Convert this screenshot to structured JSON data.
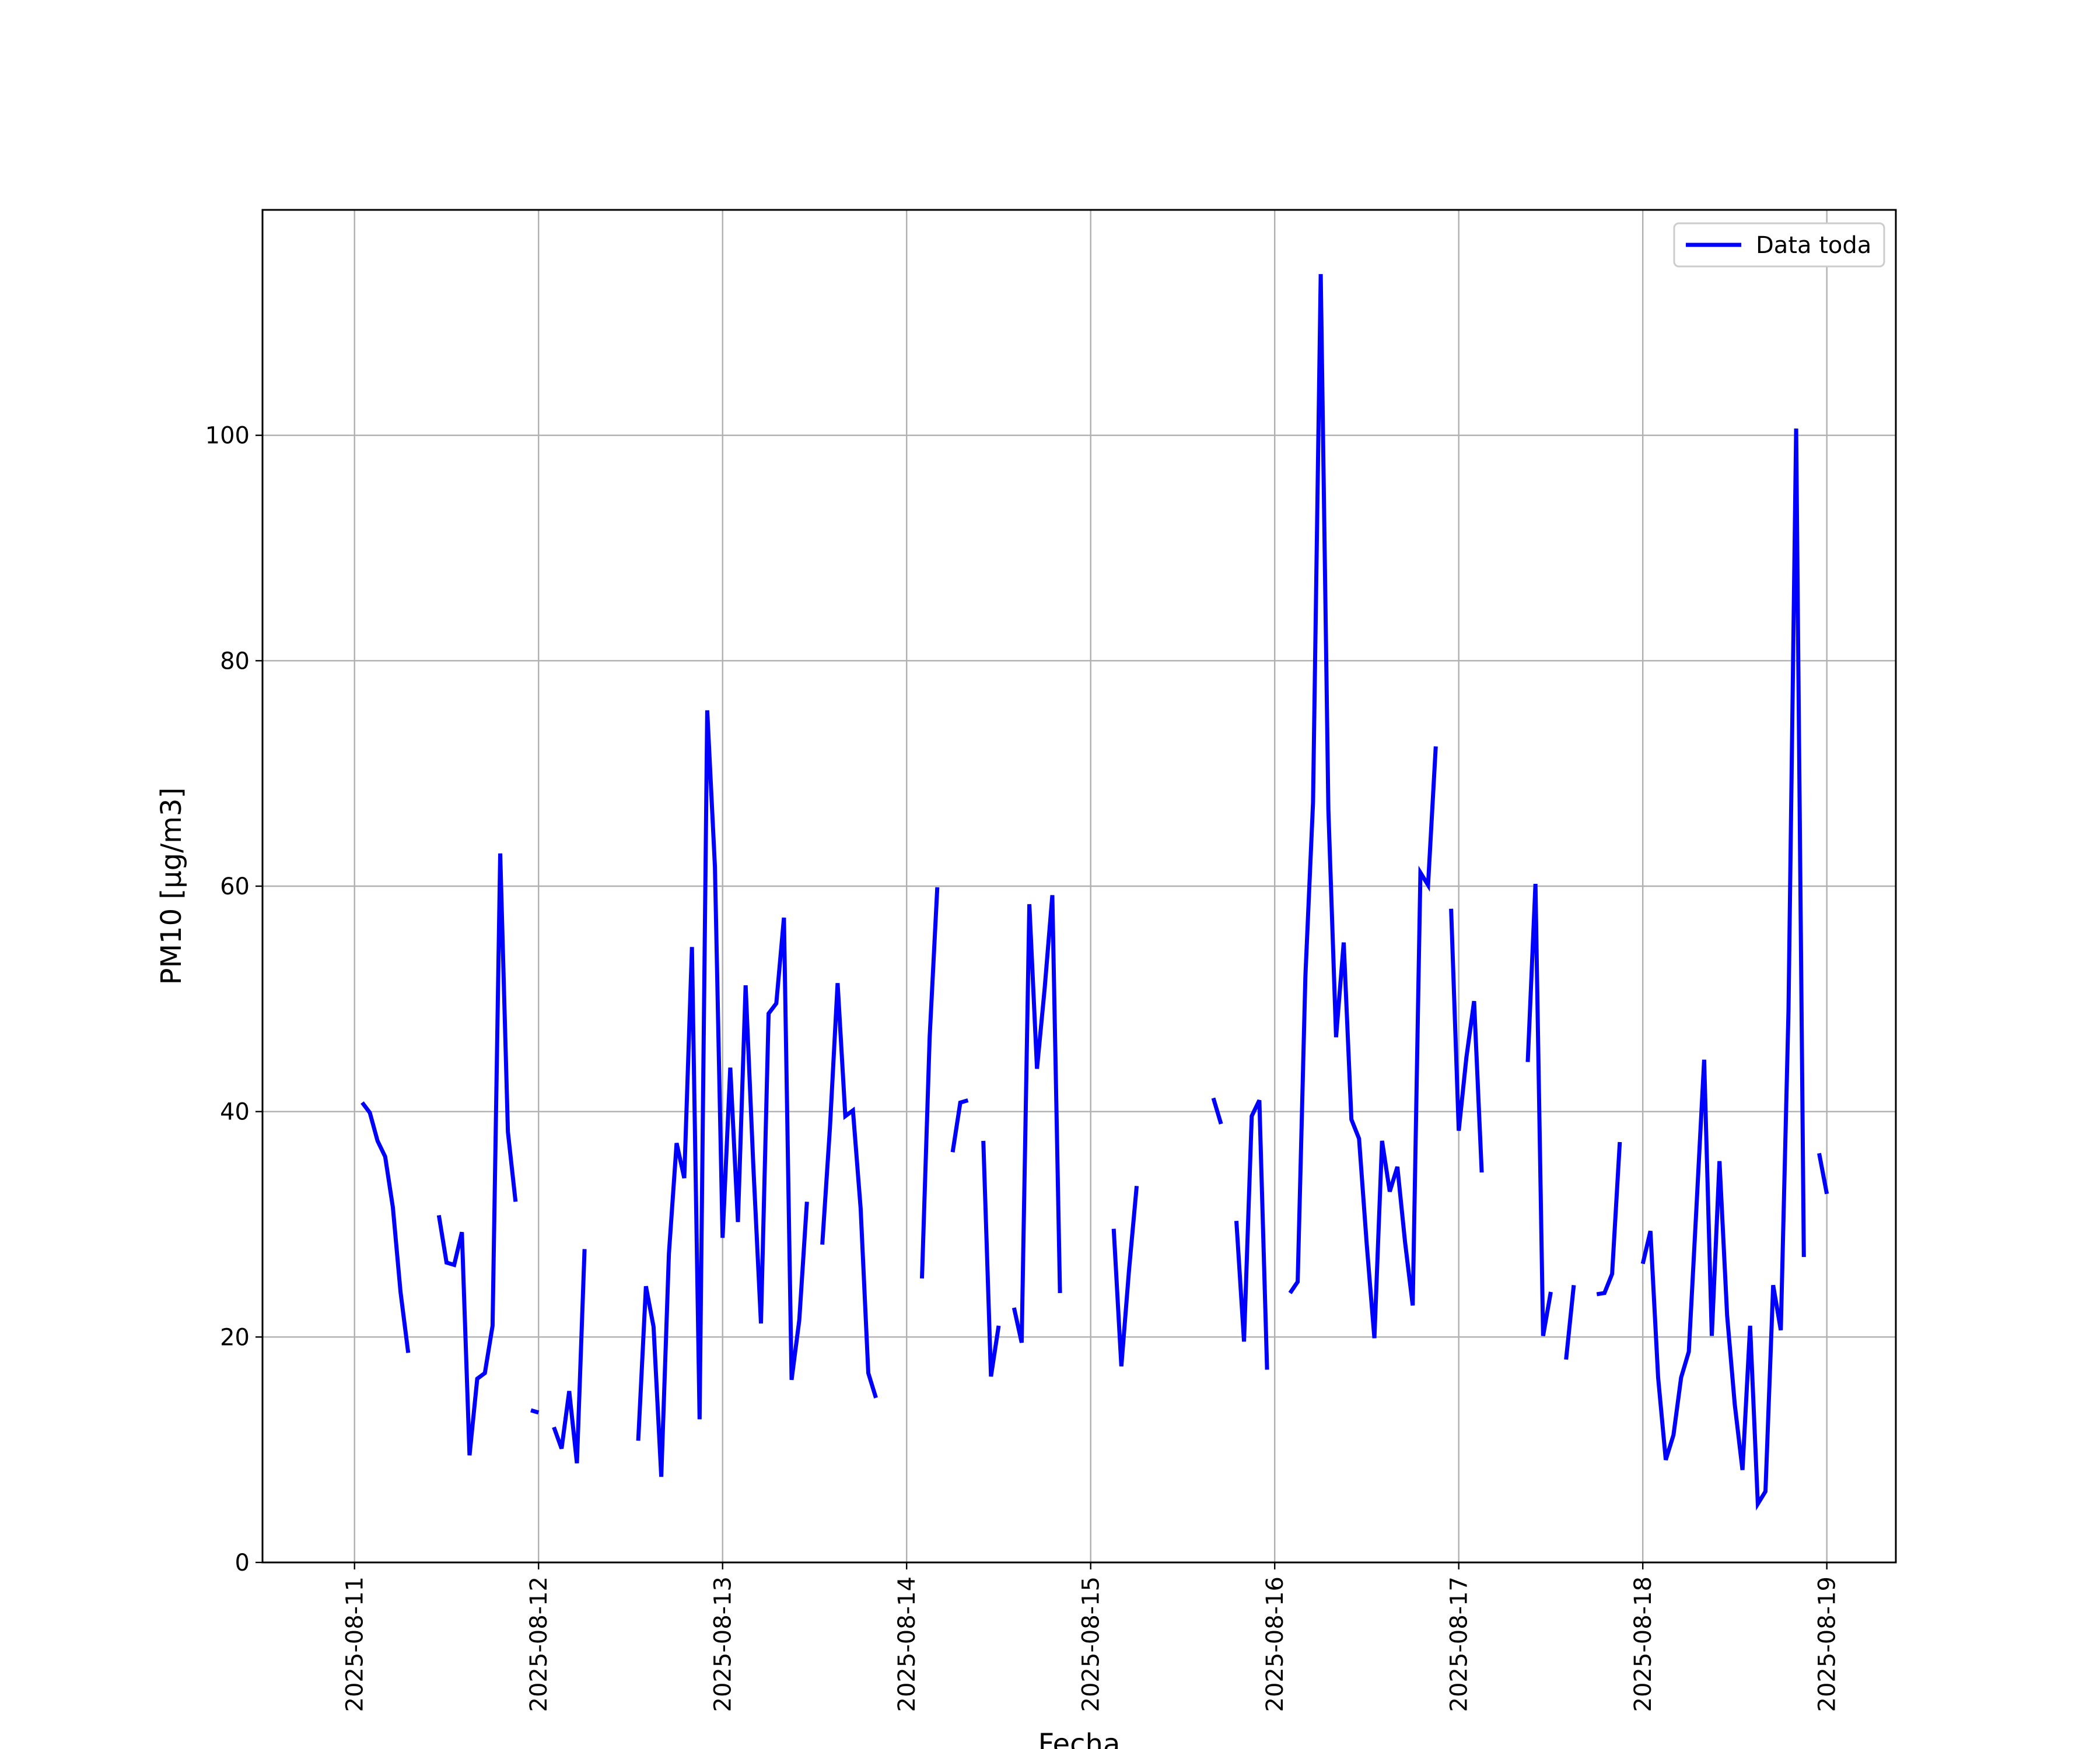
{
  "chart_data": {
    "type": "line",
    "title": "",
    "xlabel": "Fecha",
    "ylabel": "PM10 [μg/m3]",
    "ylim": [
      0,
      120
    ],
    "xlim": [
      "2025-08-10 12:00",
      "2025-08-19 09:00"
    ],
    "grid": true,
    "legend": {
      "placement": "top-right",
      "entries": [
        "Data toda"
      ]
    },
    "x_ticks": [
      "2025-08-11",
      "2025-08-12",
      "2025-08-13",
      "2025-08-14",
      "2025-08-15",
      "2025-08-16",
      "2025-08-17",
      "2025-08-18",
      "2025-08-19"
    ],
    "y_ticks": [
      0,
      20,
      40,
      60,
      80,
      100
    ],
    "series": [
      {
        "name": "Data toda",
        "color": "#0000ff",
        "segments": [
          [
            [
              "2025-08-11 01:00",
              40.8
            ],
            [
              "2025-08-11 02:00",
              39.9
            ],
            [
              "2025-08-11 03:00",
              37.4
            ],
            [
              "2025-08-11 04:00",
              36.0
            ],
            [
              "2025-08-11 05:00",
              31.5
            ],
            [
              "2025-08-11 06:00",
              24.0
            ],
            [
              "2025-08-11 07:00",
              18.6
            ]
          ],
          [
            [
              "2025-08-11 11:00",
              30.8
            ],
            [
              "2025-08-11 12:00",
              26.6
            ],
            [
              "2025-08-11 13:00",
              26.4
            ],
            [
              "2025-08-11 14:00",
              29.3
            ],
            [
              "2025-08-11 15:00",
              9.5
            ],
            [
              "2025-08-11 16:00",
              16.3
            ],
            [
              "2025-08-11 17:00",
              16.8
            ],
            [
              "2025-08-11 18:00",
              21.0
            ],
            [
              "2025-08-11 19:00",
              62.9
            ],
            [
              "2025-08-11 20:00",
              38.2
            ],
            [
              "2025-08-11 21:00",
              32.0
            ]
          ],
          [
            [
              "2025-08-11 23:00",
              13.5
            ],
            [
              "2025-08-12 00:00",
              13.3
            ]
          ],
          [
            [
              "2025-08-12 02:00",
              12.0
            ],
            [
              "2025-08-12 03:00",
              10.1
            ],
            [
              "2025-08-12 04:00",
              15.2
            ],
            [
              "2025-08-12 05:00",
              8.8
            ],
            [
              "2025-08-12 06:00",
              27.8
            ]
          ],
          [
            [
              "2025-08-12 13:00",
              10.8
            ],
            [
              "2025-08-12 14:00",
              24.5
            ],
            [
              "2025-08-12 15:00",
              20.9
            ],
            [
              "2025-08-12 16:00",
              7.6
            ],
            [
              "2025-08-12 17:00",
              27.4
            ],
            [
              "2025-08-12 18:00",
              37.2
            ],
            [
              "2025-08-12 19:00",
              34.1
            ],
            [
              "2025-08-12 20:00",
              54.6
            ],
            [
              "2025-08-12 21:00",
              12.7
            ],
            [
              "2025-08-12 22:00",
              75.6
            ],
            [
              "2025-08-12 23:00",
              61.7
            ],
            [
              "2025-08-13 00:00",
              28.8
            ],
            [
              "2025-08-13 01:00",
              43.9
            ],
            [
              "2025-08-13 02:00",
              30.2
            ],
            [
              "2025-08-13 03:00",
              51.2
            ],
            [
              "2025-08-13 04:00",
              35.3
            ],
            [
              "2025-08-13 05:00",
              21.2
            ],
            [
              "2025-08-13 06:00",
              48.7
            ],
            [
              "2025-08-13 07:00",
              49.6
            ],
            [
              "2025-08-13 08:00",
              57.2
            ],
            [
              "2025-08-13 09:00",
              16.2
            ],
            [
              "2025-08-13 10:00",
              21.5
            ],
            [
              "2025-08-13 11:00",
              32.0
            ]
          ],
          [
            [
              "2025-08-13 13:00",
              28.2
            ],
            [
              "2025-08-13 14:00",
              38.6
            ],
            [
              "2025-08-13 15:00",
              51.4
            ],
            [
              "2025-08-13 16:00",
              39.6
            ],
            [
              "2025-08-13 17:00",
              40.1
            ],
            [
              "2025-08-13 18:00",
              31.4
            ],
            [
              "2025-08-13 19:00",
              16.8
            ],
            [
              "2025-08-13 20:00",
              14.6
            ]
          ],
          [
            [
              "2025-08-14 02:00",
              25.2
            ],
            [
              "2025-08-14 03:00",
              46.6
            ],
            [
              "2025-08-14 04:00",
              59.9
            ]
          ],
          [
            [
              "2025-08-14 06:00",
              36.4
            ],
            [
              "2025-08-14 07:00",
              40.8
            ],
            [
              "2025-08-14 08:00",
              41.0
            ]
          ],
          [
            [
              "2025-08-14 10:00",
              37.4
            ],
            [
              "2025-08-14 11:00",
              16.5
            ],
            [
              "2025-08-14 12:00",
              21.0
            ]
          ],
          [
            [
              "2025-08-14 14:00",
              22.6
            ],
            [
              "2025-08-14 15:00",
              19.5
            ],
            [
              "2025-08-14 16:00",
              58.4
            ],
            [
              "2025-08-14 17:00",
              43.8
            ],
            [
              "2025-08-14 18:00",
              50.9
            ],
            [
              "2025-08-14 19:00",
              59.2
            ],
            [
              "2025-08-14 20:00",
              23.9
            ]
          ],
          [
            [
              "2025-08-15 03:00",
              29.6
            ],
            [
              "2025-08-15 04:00",
              17.4
            ],
            [
              "2025-08-15 05:00",
              25.9
            ],
            [
              "2025-08-15 06:00",
              33.4
            ]
          ],
          [
            [
              "2025-08-15 16:00",
              41.2
            ],
            [
              "2025-08-15 17:00",
              38.9
            ]
          ],
          [
            [
              "2025-08-15 19:00",
              30.3
            ],
            [
              "2025-08-15 20:00",
              19.6
            ],
            [
              "2025-08-15 21:00",
              39.6
            ],
            [
              "2025-08-15 22:00",
              41.0
            ],
            [
              "2025-08-15 23:00",
              17.1
            ]
          ],
          [
            [
              "2025-08-16 02:00",
              23.9
            ],
            [
              "2025-08-16 03:00",
              24.9
            ],
            [
              "2025-08-16 04:00",
              52.0
            ],
            [
              "2025-08-16 05:00",
              67.4
            ],
            [
              "2025-08-16 06:00",
              114.3
            ],
            [
              "2025-08-16 07:00",
              66.8
            ],
            [
              "2025-08-16 08:00",
              46.6
            ],
            [
              "2025-08-16 09:00",
              55.0
            ],
            [
              "2025-08-16 10:00",
              39.3
            ],
            [
              "2025-08-16 11:00",
              37.6
            ],
            [
              "2025-08-16 12:00",
              28.2
            ],
            [
              "2025-08-16 13:00",
              19.9
            ],
            [
              "2025-08-16 14:00",
              37.4
            ],
            [
              "2025-08-16 15:00",
              32.9
            ],
            [
              "2025-08-16 16:00",
              35.1
            ],
            [
              "2025-08-16 17:00",
              28.4
            ],
            [
              "2025-08-16 18:00",
              22.8
            ],
            [
              "2025-08-16 19:00",
              61.2
            ],
            [
              "2025-08-16 20:00",
              60.1
            ],
            [
              "2025-08-16 21:00",
              72.4
            ]
          ],
          [
            [
              "2025-08-16 23:00",
              58.0
            ],
            [
              "2025-08-17 00:00",
              38.3
            ],
            [
              "2025-08-17 01:00",
              44.8
            ],
            [
              "2025-08-17 02:00",
              49.8
            ],
            [
              "2025-08-17 03:00",
              34.6
            ]
          ],
          [
            [
              "2025-08-17 09:00",
              44.4
            ],
            [
              "2025-08-17 10:00",
              60.2
            ],
            [
              "2025-08-17 11:00",
              20.1
            ],
            [
              "2025-08-17 12:00",
              24.0
            ]
          ],
          [
            [
              "2025-08-17 14:00",
              18.0
            ],
            [
              "2025-08-17 15:00",
              24.6
            ]
          ],
          [
            [
              "2025-08-17 18:00",
              23.8
            ],
            [
              "2025-08-17 19:00",
              23.9
            ],
            [
              "2025-08-17 20:00",
              25.6
            ],
            [
              "2025-08-17 21:00",
              37.3
            ]
          ],
          [
            [
              "2025-08-18 00:00",
              26.5
            ],
            [
              "2025-08-18 01:00",
              29.4
            ],
            [
              "2025-08-18 02:00",
              16.4
            ],
            [
              "2025-08-18 03:00",
              9.1
            ],
            [
              "2025-08-18 04:00",
              11.3
            ],
            [
              "2025-08-18 05:00",
              16.4
            ],
            [
              "2025-08-18 06:00",
              18.7
            ],
            [
              "2025-08-18 07:00",
              31.5
            ],
            [
              "2025-08-18 08:00",
              44.6
            ],
            [
              "2025-08-18 09:00",
              20.1
            ],
            [
              "2025-08-18 10:00",
              35.6
            ],
            [
              "2025-08-18 11:00",
              21.9
            ],
            [
              "2025-08-18 12:00",
              14.0
            ],
            [
              "2025-08-18 13:00",
              8.2
            ],
            [
              "2025-08-18 14:00",
              21.0
            ],
            [
              "2025-08-18 15:00",
              5.2
            ],
            [
              "2025-08-18 16:00",
              6.3
            ],
            [
              "2025-08-18 17:00",
              24.6
            ],
            [
              "2025-08-18 18:00",
              20.6
            ],
            [
              "2025-08-18 19:00",
              49.0
            ],
            [
              "2025-08-18 20:00",
              100.6
            ],
            [
              "2025-08-18 21:00",
              27.1
            ]
          ],
          [
            [
              "2025-08-18 23:00",
              36.3
            ],
            [
              "2025-08-19 00:00",
              32.7
            ]
          ]
        ]
      }
    ]
  }
}
